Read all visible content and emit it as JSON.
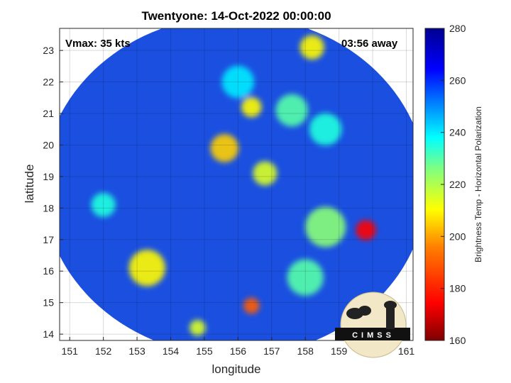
{
  "title": "Twentyone: 14-Oct-2022 00:00:00",
  "vmax_label": "Vmax: 35 kts",
  "away_label": "03:56 away",
  "logo_text": "CIMSS",
  "colors": {
    "field_base": "#1a4fe0",
    "colormap": [
      "#7f0000",
      "#ff0000",
      "#ff8000",
      "#ffff00",
      "#80ff80",
      "#00ffff",
      "#0080ff",
      "#0000ff",
      "#00008f"
    ]
  },
  "chart_data": {
    "type": "heatmap",
    "title": "Twentyone: 14-Oct-2022 00:00:00",
    "xlabel": "longitude",
    "ylabel": "latitude",
    "xlim": [
      150.7,
      161.2
    ],
    "ylim": [
      13.8,
      23.7
    ],
    "xticks": [
      151,
      152,
      153,
      154,
      155,
      156,
      157,
      158,
      159,
      160,
      161
    ],
    "yticks": [
      14,
      15,
      16,
      17,
      18,
      19,
      20,
      21,
      22,
      23
    ],
    "grid": true,
    "colorbar": {
      "label": "Brightness Temp - Horizontal Polarization",
      "range": [
        160,
        280
      ],
      "ticks": [
        160,
        180,
        200,
        220,
        240,
        260,
        280
      ]
    },
    "swath_center": [
      155.9,
      18.7
    ],
    "swath_radius_deg": [
      5.7,
      5.4
    ],
    "features": [
      {
        "lon": 155.6,
        "lat": 19.9,
        "tb": 205,
        "r": 0.35
      },
      {
        "lon": 156.4,
        "lat": 21.2,
        "tb": 210,
        "r": 0.25
      },
      {
        "lon": 156.8,
        "lat": 19.1,
        "tb": 215,
        "r": 0.3
      },
      {
        "lon": 159.8,
        "lat": 17.3,
        "tb": 175,
        "r": 0.25
      },
      {
        "lon": 158.6,
        "lat": 17.4,
        "tb": 225,
        "r": 0.5
      },
      {
        "lon": 153.3,
        "lat": 16.1,
        "tb": 210,
        "r": 0.45
      },
      {
        "lon": 156.4,
        "lat": 14.9,
        "tb": 190,
        "r": 0.2
      },
      {
        "lon": 158.2,
        "lat": 23.1,
        "tb": 210,
        "r": 0.3
      },
      {
        "lon": 158.6,
        "lat": 20.5,
        "tb": 235,
        "r": 0.4
      },
      {
        "lon": 157.6,
        "lat": 21.1,
        "tb": 230,
        "r": 0.4
      },
      {
        "lon": 152.0,
        "lat": 18.1,
        "tb": 235,
        "r": 0.3
      },
      {
        "lon": 158.0,
        "lat": 15.8,
        "tb": 230,
        "r": 0.45
      },
      {
        "lon": 154.8,
        "lat": 14.2,
        "tb": 215,
        "r": 0.2
      },
      {
        "lon": 156.0,
        "lat": 22.0,
        "tb": 240,
        "r": 0.4
      }
    ]
  }
}
